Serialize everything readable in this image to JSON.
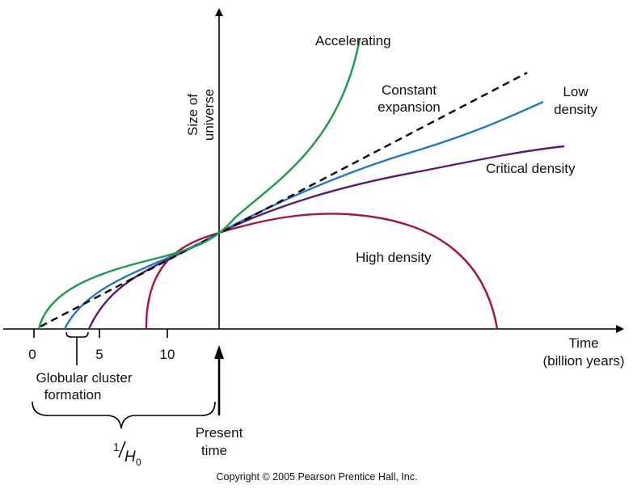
{
  "chart_data": {
    "type": "line",
    "y_axis_label_line1": "Size of",
    "y_axis_label_line2": "universe",
    "x_axis_label_line1": "Time",
    "x_axis_label_line2": "(billion years)",
    "x_ticks": [
      "0",
      "5",
      "10"
    ],
    "series": [
      {
        "key": "accelerating",
        "name": "Accelerating",
        "color": "#1a9a4a"
      },
      {
        "key": "constant",
        "name_line1": "Constant",
        "name_line2": "expansion",
        "color": "#000000",
        "style": "dashed"
      },
      {
        "key": "low",
        "name_line1": "Low",
        "name_line2": "density",
        "color": "#1f78c8"
      },
      {
        "key": "critical",
        "name": "Critical density",
        "color": "#5a1a78"
      },
      {
        "key": "high",
        "name": "High density",
        "color": "#a8123e"
      }
    ],
    "annotations": {
      "globular_line1": "Globular cluster",
      "globular_line2": "formation",
      "hubble_num": "1",
      "hubble_den": "H",
      "hubble_sub": "0",
      "present_line1": "Present",
      "present_line2": "time"
    }
  },
  "copyright": "Copyright © 2005 Pearson Prentice Hall, Inc."
}
